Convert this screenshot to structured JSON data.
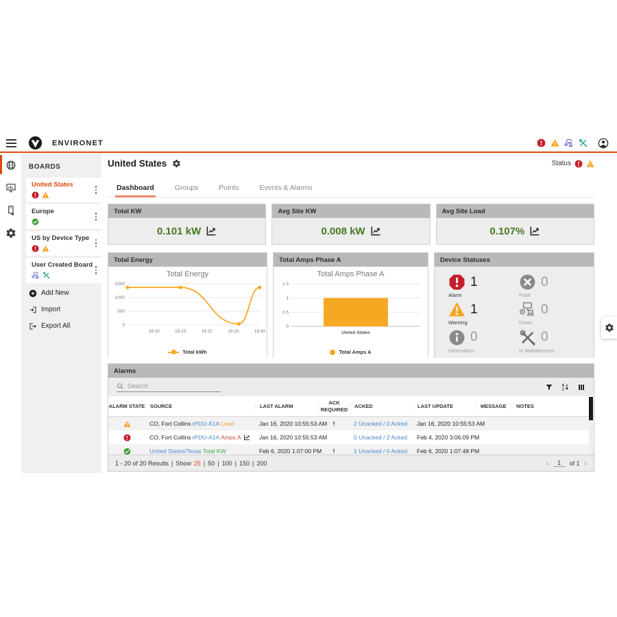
{
  "app": {
    "name": "ENVIRONET"
  },
  "header": {
    "status_icons": [
      "alarm",
      "warning",
      "down",
      "maintenance"
    ]
  },
  "rail": {
    "items": [
      "boards",
      "dashboards",
      "devices",
      "settings"
    ]
  },
  "sidebar": {
    "title": "BOARDS",
    "boards": [
      {
        "label": "United States",
        "active": true,
        "statuses": [
          "alarm",
          "warning"
        ]
      },
      {
        "label": "Europe",
        "statuses": [
          "ok"
        ]
      },
      {
        "label": "US by Device Type",
        "statuses": [
          "alarm",
          "warning"
        ]
      },
      {
        "label": "User Created Board",
        "statuses": [
          "down",
          "maintenance"
        ]
      }
    ],
    "actions": [
      {
        "label": "Add New"
      },
      {
        "label": "Import"
      },
      {
        "label": "Export All"
      }
    ]
  },
  "main": {
    "title": "United States",
    "status": {
      "label": "Status",
      "icons": [
        "alarm",
        "warning"
      ]
    },
    "tabs": [
      {
        "label": "Dashboard",
        "active": true
      },
      {
        "label": "Groups"
      },
      {
        "label": "Points"
      },
      {
        "label": "Events & Alarms"
      }
    ],
    "stat_cards": [
      {
        "title": "Total KW",
        "value": "0.101 kW"
      },
      {
        "title": "Avg Site KW",
        "value": "0.008 kW"
      },
      {
        "title": "Avg Site Load",
        "value": "0.107%"
      }
    ],
    "panels": {
      "energy_title": "Total Energy",
      "amps_title": "Total Amps Phase A",
      "device_title": "Device Statuses"
    },
    "device_statuses": [
      {
        "label": "Alarm",
        "count": "1",
        "icon": "alarm"
      },
      {
        "label": "Fault",
        "count": "0",
        "icon": "fault"
      },
      {
        "label": "Warning",
        "count": "1",
        "icon": "warning"
      },
      {
        "label": "Down",
        "count": "0",
        "icon": "down"
      },
      {
        "label": "Information",
        "count": "0",
        "icon": "information"
      },
      {
        "label": "In Maintenance",
        "count": "0",
        "icon": "maintenance"
      }
    ]
  },
  "alarms": {
    "title": "Alarms",
    "search_placeholder": "Search",
    "columns": [
      "ALARM STATE",
      "SOURCE",
      "LAST ALARM",
      "ACK REQUIRED",
      "ACKED",
      "LAST UPDATE",
      "MESSAGE",
      "NOTES"
    ],
    "rows": [
      {
        "state": "warning",
        "source": [
          {
            "text": "CO, Fort Collins "
          },
          {
            "text": "rPDU-A1A"
          },
          {
            "text": " Load"
          }
        ],
        "last_alarm": "Jan 16, 2020 10:55:53 AM",
        "ack": "!",
        "acked": "2 Unacked / 0 Acked",
        "last_update": "Jan 16, 2020 10:55:53 AM",
        "message": "",
        "notes": ""
      },
      {
        "state": "alarm",
        "source": [
          {
            "text": "CO, Fort Collins "
          },
          {
            "text": "rPDU-A1A"
          },
          {
            "text": " Amps A"
          }
        ],
        "last_alarm": "Jan 16, 2020 10:55:53 AM",
        "ack": "",
        "acked": "0 Unacked / 2 Acked",
        "last_update": "Feb 4, 2020 3:06:09 PM",
        "message": "",
        "notes": ""
      },
      {
        "state": "ok",
        "source": [
          {
            "text": "United States/Texas"
          },
          {
            "text": " Total KW"
          }
        ],
        "last_alarm": "Feb 6, 2020 1:07:00 PM",
        "ack": "!",
        "acked": "1 Unacked / 0 Acked",
        "last_update": "Feb 6, 2020 1:07:48 PM",
        "message": "",
        "notes": ""
      }
    ],
    "footer": {
      "results": "1 - 20 of 20 Results",
      "sep": "|",
      "show_label": "Show",
      "page_sizes": [
        "25",
        "50",
        "100",
        "150",
        "200"
      ],
      "active_size": "25",
      "page": "1",
      "of": "of 1"
    }
  },
  "colors": {
    "accent": "#e04a0c",
    "alarm_red": "#c41e29",
    "warning_orange": "#f5a623",
    "ok_green": "#3e9c35",
    "link_blue": "#4a86c8",
    "value_green": "#45791e",
    "amber": "#f7a823",
    "down_indigo": "#5a5fc7",
    "maintenance_teal": "#23a38e"
  },
  "chart_data": [
    {
      "type": "line",
      "title": "Total Energy",
      "legend": [
        "Total kWh"
      ],
      "x_domain": [
        "18:05",
        "18:30"
      ],
      "x_ticks": [
        "18:10",
        "18:15",
        "18:20",
        "18:25",
        "18:30"
      ],
      "y_ticks": [
        0,
        500,
        1000,
        1500
      ],
      "ylim": [
        0,
        1500
      ],
      "series": [
        {
          "name": "Total kWh",
          "points": [
            {
              "x": "18:05",
              "y": 1370
            },
            {
              "x": "18:15",
              "y": 1370
            },
            {
              "x": "18:26",
              "y": 40
            },
            {
              "x": "18:30",
              "y": 1370
            }
          ]
        }
      ],
      "color": "#f7a823",
      "grid": true,
      "legend_position": "bottom"
    },
    {
      "type": "bar",
      "title": "Total Amps Phase A",
      "legend": [
        "Total Amps A"
      ],
      "categories": [
        "United States"
      ],
      "values": [
        1
      ],
      "y_ticks": [
        0,
        0.5,
        1,
        1.5
      ],
      "ylim": [
        0,
        1.5
      ],
      "color": "#f7a823",
      "grid": true,
      "legend_position": "bottom"
    }
  ]
}
